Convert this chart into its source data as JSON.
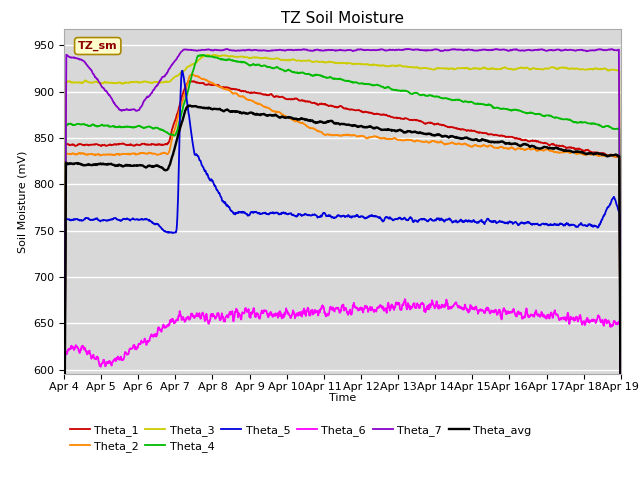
{
  "title": "TZ Soil Moisture",
  "xlabel": "Time",
  "ylabel": "Soil Moisture (mV)",
  "ylim": [
    595,
    968
  ],
  "yticks": [
    600,
    650,
    700,
    750,
    800,
    850,
    900,
    950
  ],
  "date_labels": [
    "Apr 4",
    "Apr 5",
    "Apr 6",
    "Apr 7",
    "Apr 8",
    "Apr 9",
    "Apr 10",
    "Apr 11",
    "Apr 12",
    "Apr 13",
    "Apr 14",
    "Apr 15",
    "Apr 16",
    "Apr 17",
    "Apr 18",
    "Apr 19"
  ],
  "legend_row1": [
    "Theta_1",
    "Theta_2",
    "Theta_3",
    "Theta_4",
    "Theta_5",
    "Theta_6"
  ],
  "legend_row2": [
    "Theta_7",
    "Theta_avg"
  ],
  "colors": {
    "Theta_1": "#cc0000",
    "Theta_2": "#ff8800",
    "Theta_3": "#cccc00",
    "Theta_4": "#00bb00",
    "Theta_5": "#0000dd",
    "Theta_6": "#ff00ff",
    "Theta_7": "#8800cc",
    "Theta_avg": "#000000"
  },
  "label_box": "TZ_sm",
  "fig_bg_color": "#ffffff",
  "plot_bg_color": "#d8d8d8",
  "grid_color": "#ffffff",
  "title_fontsize": 11,
  "axis_fontsize": 8,
  "legend_fontsize": 8,
  "linewidth": 1.3
}
